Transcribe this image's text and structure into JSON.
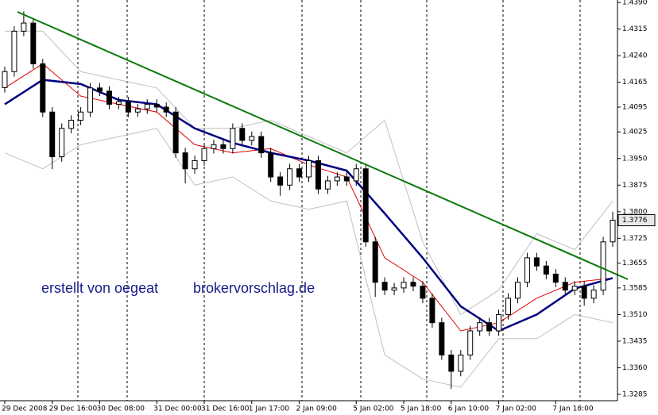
{
  "chart_data": {
    "type": "candlestick",
    "xlim": [
      -0.5,
      64.5
    ],
    "ylim": [
      1.3267,
      1.4397
    ],
    "grid": false,
    "xticks": [
      {
        "value": 0,
        "label": "29 Dec 2008"
      },
      {
        "value": 5,
        "label": "29 Dec 16:00"
      },
      {
        "value": 10,
        "label": "30 Dec 08:00"
      },
      {
        "value": 16,
        "label": "31 Dec 00:00"
      },
      {
        "value": 21,
        "label": "31 Dec 16:00"
      },
      {
        "value": 26,
        "label": "1 Jan 17:00"
      },
      {
        "value": 31,
        "label": "2 Jan 09:00"
      },
      {
        "value": 37,
        "label": "5 Jan 02:00"
      },
      {
        "value": 42,
        "label": "5 Jan 18:00"
      },
      {
        "value": 47,
        "label": "6 Jan 10:00"
      },
      {
        "value": 52,
        "label": "7 Jan 02:00"
      },
      {
        "value": 58,
        "label": "7 Jan 18:00"
      }
    ],
    "yticks": [
      {
        "value": 1.439,
        "label": "1.4390"
      },
      1.4315,
      {
        "value": 1.424,
        "label": "1.4240"
      },
      1.4165,
      1.4095,
      1.4025,
      {
        "value": 1.395,
        "label": "1.3950"
      },
      1.3875,
      {
        "value": 1.38,
        "label": "1.3800"
      },
      1.3725,
      1.3655,
      1.3585,
      {
        "value": 1.351,
        "label": "1.3510"
      },
      1.3435,
      {
        "value": 1.336,
        "label": "1.3360"
      },
      1.3285
    ],
    "open": [
      1.415,
      1.4195,
      1.4309,
      1.4332,
      1.4217,
      1.4081,
      1.3955,
      1.4035,
      1.4058,
      1.4081,
      1.4149,
      1.414,
      1.4103,
      1.411,
      1.4081,
      1.409,
      1.4103,
      1.4095,
      1.4081,
      1.3966,
      1.3921,
      1.3944,
      1.3978,
      1.3989,
      1.3978,
      1.4035,
      1.4001,
      1.4012,
      1.3966,
      1.3898,
      1.3875,
      1.3921,
      1.3898,
      1.3944,
      1.3864,
      1.3887,
      1.3898,
      1.3887,
      1.3921,
      1.3715,
      1.3601,
      1.3579,
      1.3585,
      1.3601,
      1.359,
      1.3556,
      1.3487,
      1.3396,
      1.335,
      1.3396,
      1.3464,
      1.3487,
      1.3464,
      1.351,
      1.3556,
      1.3601,
      1.367,
      1.3647,
      1.3624,
      1.3601,
      1.3579,
      1.359,
      1.3556,
      1.3579,
      1.3715
    ],
    "high": [
      1.4209,
      1.4323,
      1.4365,
      1.4346,
      1.4231,
      1.4095,
      1.4049,
      1.4072,
      1.4095,
      1.4163,
      1.4163,
      1.4154,
      1.4124,
      1.4124,
      1.4104,
      1.4117,
      1.4117,
      1.4109,
      1.4095,
      1.398,
      1.3958,
      1.3992,
      1.4003,
      1.4003,
      1.4049,
      1.4049,
      1.4026,
      1.4026,
      1.398,
      1.3912,
      1.3935,
      1.3935,
      1.3958,
      1.3958,
      1.3901,
      1.3912,
      1.3912,
      1.3935,
      1.3935,
      1.3729,
      1.3615,
      1.3599,
      1.3615,
      1.3615,
      1.3604,
      1.357,
      1.3501,
      1.341,
      1.341,
      1.3478,
      1.3501,
      1.3501,
      1.3524,
      1.357,
      1.3615,
      1.3684,
      1.3684,
      1.3661,
      1.3638,
      1.3615,
      1.3604,
      1.3604,
      1.3593,
      1.3729,
      1.38
    ],
    "low": [
      1.4136,
      1.4181,
      1.4295,
      1.4203,
      1.4067,
      1.392,
      1.3941,
      1.4021,
      1.4044,
      1.4067,
      1.4126,
      1.4089,
      1.4089,
      1.4067,
      1.4067,
      1.4076,
      1.4081,
      1.4067,
      1.3952,
      1.388,
      1.3907,
      1.393,
      1.3964,
      1.3964,
      1.3964,
      1.3987,
      1.3987,
      1.3952,
      1.3884,
      1.3845,
      1.3861,
      1.3884,
      1.3884,
      1.385,
      1.385,
      1.3873,
      1.3873,
      1.3873,
      1.3701,
      1.356,
      1.3565,
      1.3565,
      1.3571,
      1.3576,
      1.3542,
      1.3473,
      1.3382,
      1.33,
      1.3336,
      1.3382,
      1.345,
      1.345,
      1.345,
      1.3496,
      1.3542,
      1.3587,
      1.3633,
      1.361,
      1.3587,
      1.3565,
      1.3565,
      1.3535,
      1.3542,
      1.3565,
      1.3701
    ],
    "close": [
      1.4195,
      1.4309,
      1.4332,
      1.4217,
      1.4081,
      1.3955,
      1.4035,
      1.4058,
      1.4081,
      1.4149,
      1.414,
      1.4103,
      1.411,
      1.4081,
      1.409,
      1.4103,
      1.4095,
      1.4081,
      1.3966,
      1.3921,
      1.3944,
      1.3978,
      1.3989,
      1.3978,
      1.4035,
      1.4001,
      1.4012,
      1.3966,
      1.3898,
      1.3875,
      1.3921,
      1.3898,
      1.3944,
      1.3864,
      1.3887,
      1.3898,
      1.3887,
      1.3921,
      1.3715,
      1.3601,
      1.3579,
      1.3585,
      1.3601,
      1.359,
      1.3556,
      1.3487,
      1.3396,
      1.335,
      1.3396,
      1.3464,
      1.3487,
      1.3464,
      1.351,
      1.3556,
      1.3601,
      1.367,
      1.3647,
      1.3624,
      1.3601,
      1.3579,
      1.359,
      1.3556,
      1.3579,
      1.3715,
      1.3776
    ],
    "series": [
      {
        "color": "#c0c0c0",
        "x": [
          0,
          4,
          8,
          12,
          16,
          20,
          24,
          28,
          32,
          36,
          40,
          44,
          48,
          52,
          56,
          60,
          64
        ],
        "values": [
          1.4309,
          1.4309,
          1.4195,
          1.4172,
          1.4149,
          1.4035,
          1.4035,
          1.4058,
          1.4012,
          1.3966,
          1.4058,
          1.3715,
          1.351,
          1.3579,
          1.3738,
          1.3693,
          1.383
        ]
      },
      {
        "color": "#c0c0c0",
        "x": [
          0,
          4,
          8,
          12,
          16,
          20,
          24,
          28,
          32,
          36,
          40,
          44,
          48,
          52,
          56,
          60,
          64
        ],
        "values": [
          1.3966,
          1.3921,
          1.3989,
          1.4012,
          1.4035,
          1.3875,
          1.3898,
          1.383,
          1.3807,
          1.383,
          1.3396,
          1.3328,
          1.3305,
          1.3442,
          1.3442,
          1.351,
          1.3487
        ]
      },
      {
        "color": "#e00000",
        "x": [
          0,
          4,
          8,
          12,
          16,
          20,
          24,
          28,
          32,
          36,
          40,
          44,
          48,
          52,
          56,
          60,
          64
        ],
        "values": [
          1.4149,
          1.4217,
          1.4126,
          1.4103,
          1.4081,
          1.3989,
          1.3966,
          1.3978,
          1.3932,
          1.3898,
          1.367,
          1.3601,
          1.3464,
          1.3487,
          1.3556,
          1.3601,
          1.3613
        ]
      },
      {
        "color": "#000080",
        "x": [
          0,
          4,
          8,
          12,
          16,
          20,
          24,
          28,
          32,
          36,
          40,
          44,
          48,
          52,
          56,
          60,
          64
        ],
        "values": [
          1.4103,
          1.4172,
          1.416,
          1.4115,
          1.4103,
          1.4035,
          1.3994,
          1.3966,
          1.3944,
          1.3916,
          1.3795,
          1.367,
          1.3533,
          1.3464,
          1.351,
          1.3583,
          1.3613
        ]
      }
    ],
    "current_price": 1.3776,
    "annotations": [
      "erstellt von oegeat",
      "brokervorschlag.de"
    ]
  }
}
